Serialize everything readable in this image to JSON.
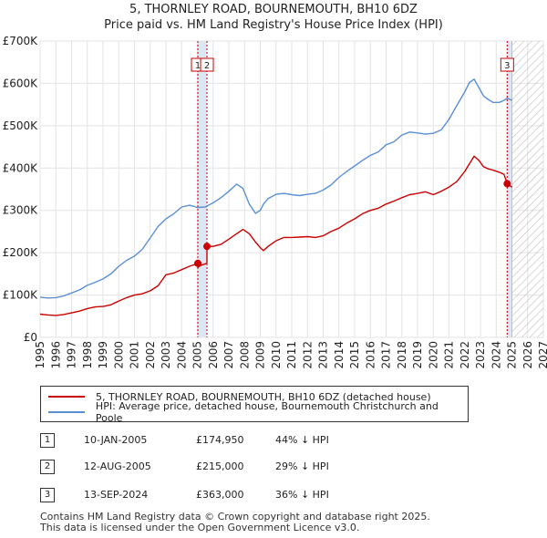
{
  "title_line1": "5, THORNLEY ROAD, BOURNEMOUTH, BH10 6DZ",
  "title_line2": "Price paid vs. HM Land Registry's House Price Index (HPI)",
  "legend": {
    "property": "5, THORNLEY ROAD, BOURNEMOUTH, BH10 6DZ (detached house)",
    "hpi": "HPI: Average price, detached house, Bournemouth Christchurch and Poole"
  },
  "sales": [
    {
      "num": "1",
      "date": "10-JAN-2005",
      "price": "£174,950",
      "diff": "44% ↓ HPI"
    },
    {
      "num": "2",
      "date": "12-AUG-2005",
      "price": "£215,000",
      "diff": "29% ↓ HPI"
    },
    {
      "num": "3",
      "date": "13-SEP-2024",
      "price": "£363,000",
      "diff": "36% ↓ HPI"
    }
  ],
  "footer_line1": "Contains HM Land Registry data © Crown copyright and database right 2025.",
  "footer_line2": "This data is licensed under the Open Government Licence v3.0.",
  "colors": {
    "property": "#cc0000",
    "hpi": "#5b8fd4",
    "sale_band": "#dde6f5",
    "hatch": "#bbbbbb"
  },
  "chart_data": {
    "type": "line",
    "title": "5, THORNLEY ROAD, BOURNEMOUTH, BH10 6DZ",
    "subtitle": "Price paid vs. HM Land Registry's House Price Index (HPI)",
    "xlim": [
      1995,
      2027
    ],
    "ylim": [
      0,
      700000
    ],
    "x_ticks": [
      1995,
      1996,
      1997,
      1998,
      1999,
      2000,
      2001,
      2002,
      2003,
      2004,
      2005,
      2006,
      2007,
      2008,
      2009,
      2010,
      2011,
      2012,
      2013,
      2014,
      2015,
      2016,
      2017,
      2018,
      2019,
      2020,
      2021,
      2022,
      2023,
      2024,
      2025,
      2026,
      2027
    ],
    "y_ticks": [
      0,
      100000,
      200000,
      300000,
      400000,
      500000,
      600000,
      700000
    ],
    "y_tick_labels": [
      "£0",
      "£100K",
      "£200K",
      "£300K",
      "£400K",
      "£500K",
      "£600K",
      "£700K"
    ],
    "hatch_from": 2025.0,
    "grid": true,
    "series": [
      {
        "name": "5, THORNLEY ROAD, BOURNEMOUTH, BH10 6DZ (detached house)",
        "color": "#cc0000",
        "x": [
          1995,
          1995.5,
          1996,
          1996.5,
          1997,
          1997.5,
          1998,
          1998.5,
          1999,
          1999.5,
          2000,
          2000.5,
          2001,
          2001.5,
          2002,
          2002.5,
          2003,
          2003.5,
          2004,
          2004.5,
          2005.03,
          2005.03,
          2005.2,
          2005.61,
          2005.61,
          2006,
          2006.5,
          2007,
          2007.5,
          2007.9,
          2008.3,
          2008.7,
          2009,
          2009.2,
          2009.5,
          2010,
          2010.5,
          2011,
          2011.5,
          2012,
          2012.5,
          2013,
          2013.5,
          2014,
          2014.5,
          2015,
          2015.5,
          2016,
          2016.5,
          2017,
          2017.5,
          2018,
          2018.5,
          2019,
          2019.5,
          2020,
          2020.5,
          2021,
          2021.5,
          2022,
          2022.3,
          2022.6,
          2022.9,
          2023.2,
          2023.5,
          2023.8,
          2024.2,
          2024.5,
          2024.7,
          2025
        ],
        "y": [
          55000,
          53000,
          52000,
          54000,
          58000,
          62000,
          68000,
          72000,
          73000,
          77000,
          86000,
          94000,
          100000,
          103000,
          110000,
          122000,
          148000,
          152000,
          160000,
          168000,
          174950,
          165000,
          170000,
          175000,
          215000,
          215000,
          220000,
          232000,
          245000,
          255000,
          245000,
          225000,
          212000,
          205000,
          215000,
          228000,
          236000,
          236000,
          237000,
          238000,
          236000,
          240000,
          250000,
          258000,
          270000,
          280000,
          292000,
          300000,
          305000,
          315000,
          322000,
          330000,
          337000,
          340000,
          344000,
          337000,
          345000,
          355000,
          368000,
          392000,
          410000,
          428000,
          418000,
          403000,
          398000,
          395000,
          390000,
          385000,
          363000,
          355000
        ]
      },
      {
        "name": "HPI: Average price, detached house, Bournemouth Christchurch and Poole",
        "color": "#5b8fd4",
        "x": [
          1995,
          1995.5,
          1996,
          1996.5,
          1997,
          1997.5,
          1998,
          1998.5,
          1999,
          1999.5,
          2000,
          2000.5,
          2001,
          2001.5,
          2002,
          2002.5,
          2003,
          2003.5,
          2004,
          2004.5,
          2005,
          2005.5,
          2006,
          2006.5,
          2007,
          2007.5,
          2007.9,
          2008.3,
          2008.7,
          2009,
          2009.2,
          2009.5,
          2010,
          2010.5,
          2011,
          2011.5,
          2012,
          2012.5,
          2013,
          2013.5,
          2014,
          2014.5,
          2015,
          2015.5,
          2016,
          2016.5,
          2017,
          2017.5,
          2018,
          2018.5,
          2019,
          2019.5,
          2020,
          2020.5,
          2021,
          2021.5,
          2022,
          2022.3,
          2022.6,
          2022.9,
          2023.2,
          2023.5,
          2023.8,
          2024.2,
          2024.5,
          2024.7,
          2025
        ],
        "y": [
          95000,
          93000,
          94000,
          98000,
          105000,
          112000,
          123000,
          130000,
          138000,
          150000,
          168000,
          182000,
          192000,
          208000,
          235000,
          262000,
          280000,
          292000,
          308000,
          312000,
          307000,
          308000,
          318000,
          330000,
          345000,
          362000,
          352000,
          315000,
          293000,
          300000,
          315000,
          328000,
          338000,
          340000,
          337000,
          335000,
          338000,
          340000,
          348000,
          360000,
          378000,
          392000,
          405000,
          418000,
          430000,
          438000,
          455000,
          462000,
          478000,
          485000,
          483000,
          480000,
          482000,
          490000,
          515000,
          548000,
          580000,
          602000,
          610000,
          590000,
          570000,
          562000,
          555000,
          555000,
          560000,
          565000,
          560000
        ]
      }
    ],
    "sale_markers": [
      {
        "label": "1",
        "x": 2005.03,
        "y": 174950
      },
      {
        "label": "2",
        "x": 2005.61,
        "y": 215000
      },
      {
        "label": "3",
        "x": 2024.7,
        "y": 363000
      }
    ],
    "annotations": [
      "1",
      "2",
      "3"
    ]
  }
}
